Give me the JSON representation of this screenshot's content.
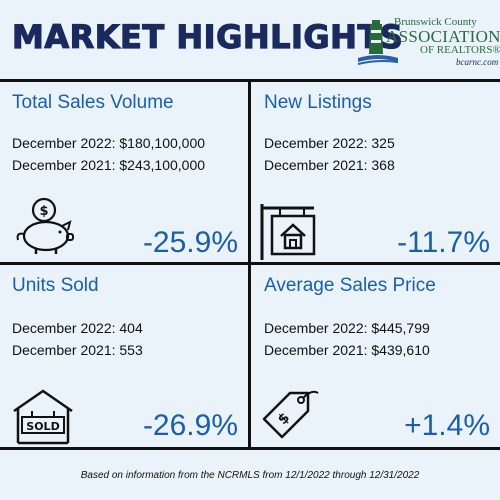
{
  "header": {
    "title": "MARKET HIGHLIGHTS",
    "logo": {
      "line1": "Brunswick County",
      "line2": "ASSOCIATION",
      "line3": "OF REALTORS®",
      "line4": "bcarnc.com"
    }
  },
  "cells": {
    "total_sales_volume": {
      "heading": "Total Sales Volume",
      "line1": "December 2022: $180,100,000",
      "line2": "December 2021: $243,100,000",
      "change": "-25.9%",
      "icon": "piggy-bank-icon"
    },
    "new_listings": {
      "heading": "New Listings",
      "line1": "December 2022: 325",
      "line2": "December 2021: 368",
      "change": "-11.7%",
      "icon": "house-sign-icon"
    },
    "units_sold": {
      "heading": "Units Sold",
      "line1": "December 2022: 404",
      "line2": "December 2021: 553",
      "change": "-26.9%",
      "icon": "sold-sign-icon"
    },
    "average_sales_price": {
      "heading": "Average Sales Price",
      "line1": "December 2022: $445,799",
      "line2": "December 2021: $439,610",
      "change": "+1.4%",
      "icon": "price-tag-icon"
    }
  },
  "footer": {
    "text": "Based on information from the NCRMLS from 12/1/2022 through 12/31/2022"
  },
  "colors": {
    "background": "#eaf3fa",
    "title": "#1a2a5e",
    "accent": "#1a5fa8",
    "logo_green": "#2a6a3a"
  }
}
